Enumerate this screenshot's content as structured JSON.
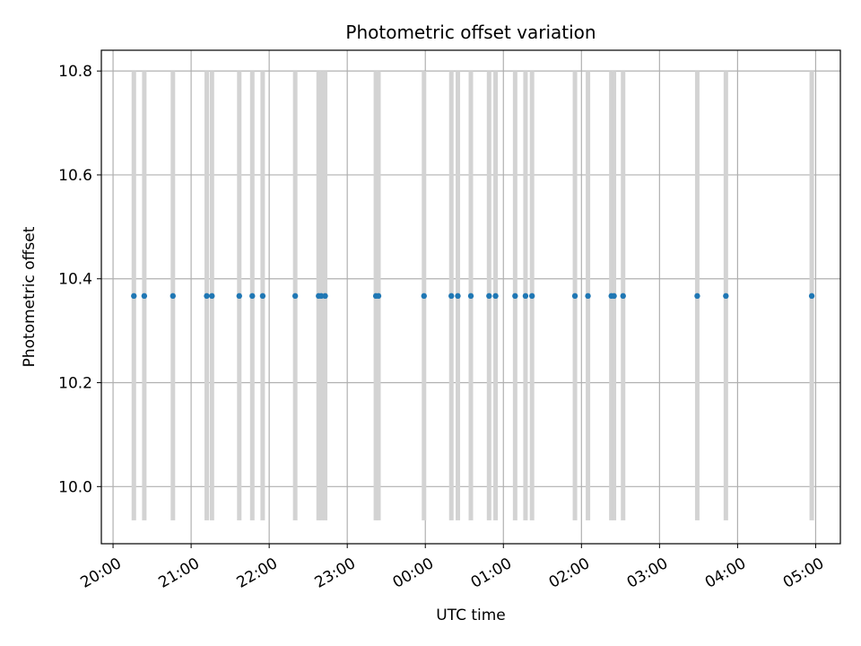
{
  "chart_data": {
    "type": "scatter",
    "title": "Photometric offset variation",
    "xlabel": "UTC time",
    "ylabel": "Photometric offset",
    "x_tick_labels": [
      "20:00",
      "21:00",
      "22:00",
      "23:00",
      "00:00",
      "01:00",
      "02:00",
      "03:00",
      "04:00",
      "05:00"
    ],
    "y_ticks": [
      10.0,
      10.2,
      10.4,
      10.6,
      10.8
    ],
    "y_tick_labels": [
      "10.0",
      "10.2",
      "10.4",
      "10.6",
      "10.8"
    ],
    "xlim": [
      "19:51",
      "05:19"
    ],
    "ylim": [
      9.89,
      10.84
    ],
    "grid": true,
    "band_range": [
      9.935,
      10.8
    ],
    "band_color": "#d3d3d3",
    "point_color": "#1f77b4",
    "points": [
      {
        "x": "20:16",
        "y": 10.367
      },
      {
        "x": "20:24",
        "y": 10.367
      },
      {
        "x": "20:46",
        "y": 10.367
      },
      {
        "x": "21:12",
        "y": 10.367
      },
      {
        "x": "21:16",
        "y": 10.367
      },
      {
        "x": "21:37",
        "y": 10.367
      },
      {
        "x": "21:47",
        "y": 10.367
      },
      {
        "x": "21:55",
        "y": 10.367
      },
      {
        "x": "22:20",
        "y": 10.367
      },
      {
        "x": "22:38",
        "y": 10.367
      },
      {
        "x": "22:40",
        "y": 10.367
      },
      {
        "x": "22:43",
        "y": 10.367
      },
      {
        "x": "23:22",
        "y": 10.367
      },
      {
        "x": "23:24",
        "y": 10.367
      },
      {
        "x": "23:59",
        "y": 10.367
      },
      {
        "x": "00:20",
        "y": 10.367
      },
      {
        "x": "00:25",
        "y": 10.367
      },
      {
        "x": "00:35",
        "y": 10.367
      },
      {
        "x": "00:49",
        "y": 10.367
      },
      {
        "x": "00:54",
        "y": 10.367
      },
      {
        "x": "01:09",
        "y": 10.367
      },
      {
        "x": "01:17",
        "y": 10.367
      },
      {
        "x": "01:22",
        "y": 10.367
      },
      {
        "x": "01:55",
        "y": 10.367
      },
      {
        "x": "02:05",
        "y": 10.367
      },
      {
        "x": "02:23",
        "y": 10.367
      },
      {
        "x": "02:25",
        "y": 10.367
      },
      {
        "x": "02:32",
        "y": 10.367
      },
      {
        "x": "03:29",
        "y": 10.367
      },
      {
        "x": "03:51",
        "y": 10.367
      },
      {
        "x": "04:57",
        "y": 10.367
      }
    ]
  }
}
